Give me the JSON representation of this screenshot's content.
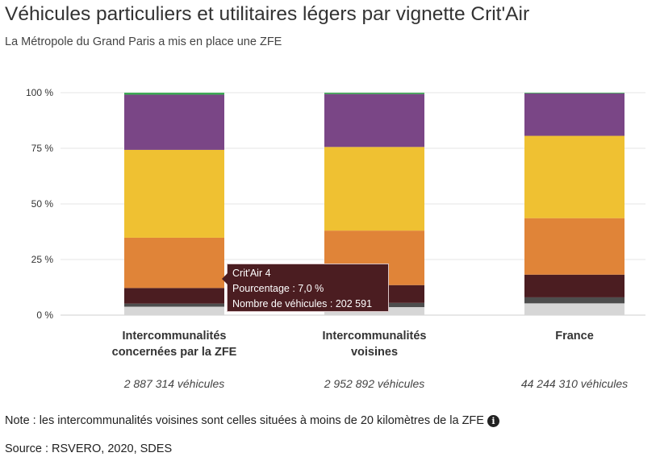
{
  "title": "Véhicules particuliers et utilitaires légers par vignette Crit'Air",
  "subtitle": "La Métropole du Grand Paris a mis en place une ZFE",
  "note": "Note : les intercommunalités voisines sont celles situées à moins de 20 kilomètres de la ZFE",
  "info_icon": "info-icon",
  "source": "Source : RSVERO, 2020, SDES",
  "tooltip": {
    "category": "Crit'Air 4",
    "percent_line": "Pourcentage : 7,0 %",
    "count_line": "Nombre de véhicules : 202 591"
  },
  "chart_data": {
    "type": "bar",
    "stacked": true,
    "categories": [
      "Intercommunalités concernées par la ZFE",
      "Intercommunalités voisines",
      "France"
    ],
    "category_lines": [
      [
        "Intercommunalités",
        "concernées par la ZFE"
      ],
      [
        "Intercommunalités",
        "voisines"
      ],
      [
        "France"
      ]
    ],
    "totals": [
      "2 887 314 véhicules",
      "2 952 892 véhicules",
      "44 244 310 véhicules"
    ],
    "yticks": [
      "0 %",
      "25 %",
      "50 %",
      "75 %",
      "100 %"
    ],
    "ylim": [
      0,
      100
    ],
    "grid": true,
    "series": [
      {
        "color": "#d6d6d6",
        "values": [
          3.8,
          3.6,
          5.3
        ]
      },
      {
        "color": "#4d4d4d",
        "values": [
          1.4,
          1.9,
          2.7
        ]
      },
      {
        "color": "#4b1d21",
        "values": [
          7.0,
          8.0,
          10.2
        ]
      },
      {
        "color": "#e08438",
        "values": [
          22.6,
          24.5,
          25.4
        ]
      },
      {
        "color": "#efc132",
        "values": [
          39.5,
          37.6,
          37.0
        ]
      },
      {
        "color": "#7a4686",
        "values": [
          24.8,
          23.8,
          19.1
        ]
      },
      {
        "color": "#3daa55",
        "values": [
          0.9,
          0.6,
          0.3
        ]
      }
    ]
  }
}
